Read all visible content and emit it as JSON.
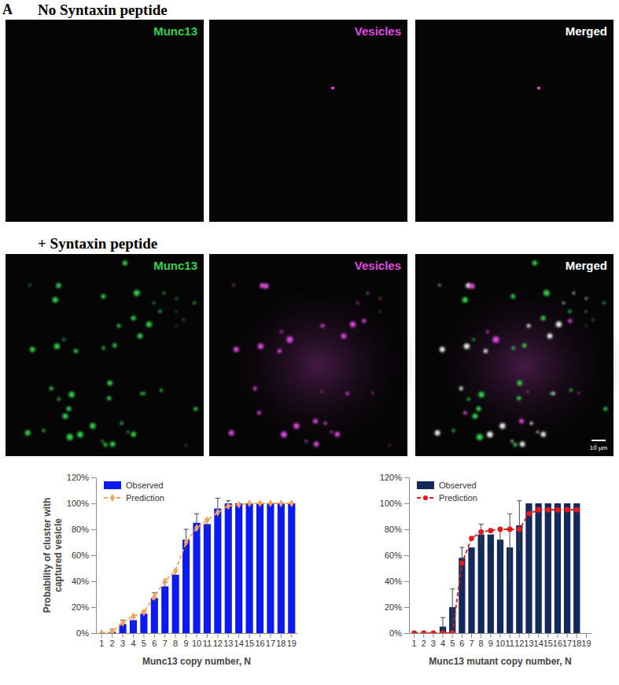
{
  "figure": {
    "letter": "A",
    "rows": [
      {
        "title": "No Syntaxin peptide",
        "channels": [
          "Munc13",
          "Vesicles",
          "Merged"
        ]
      },
      {
        "title": "+ Syntaxin peptide",
        "channels": [
          "Munc13",
          "Vesicles",
          "Merged"
        ]
      }
    ],
    "scale_bar": "10 μm"
  },
  "chart_data": [
    {
      "type": "bar",
      "x_label": "Munc13 copy number, N",
      "y_label": "Probability of cluster with captured vesicle",
      "categories": [
        1,
        2,
        3,
        4,
        5,
        6,
        7,
        8,
        9,
        10,
        11,
        12,
        13,
        14,
        15,
        16,
        17,
        18,
        19
      ],
      "series": [
        {
          "name": "Observed",
          "type": "bar",
          "color": "#0a1af0",
          "values": [
            0,
            1,
            7,
            10,
            15,
            27,
            36,
            45,
            72,
            85,
            84,
            96,
            100,
            100,
            100,
            100,
            100,
            100,
            100
          ],
          "errors": [
            0,
            2,
            3,
            2,
            2,
            4,
            3,
            3,
            8,
            7,
            4,
            8,
            2,
            0,
            0,
            0,
            0,
            0,
            0
          ]
        },
        {
          "name": "Prediction",
          "type": "line",
          "color": "#f5a35a",
          "marker": "diamond",
          "line_style": "dashed",
          "values": [
            0,
            1,
            8,
            13,
            16,
            28,
            40,
            48,
            70,
            81,
            87,
            93,
            98,
            99,
            100,
            100,
            100,
            100,
            100
          ]
        }
      ],
      "ylim": [
        0,
        120
      ],
      "yticks": [
        {
          "value": 0,
          "label": "0%"
        },
        {
          "value": 20,
          "label": "20%"
        },
        {
          "value": 40,
          "label": "40%"
        },
        {
          "value": 60,
          "label": "60%"
        },
        {
          "value": 80,
          "label": "80%"
        },
        {
          "value": 100,
          "label": "100%"
        },
        {
          "value": 120,
          "label": "120%"
        }
      ],
      "grid": false,
      "legend": "top-left"
    },
    {
      "type": "bar",
      "x_label": "Munc13 mutant copy number, N",
      "categories": [
        1,
        2,
        3,
        4,
        5,
        6,
        7,
        8,
        9,
        10,
        11,
        12,
        13,
        14,
        15,
        16,
        17,
        18,
        19
      ],
      "series": [
        {
          "name": "Observed",
          "type": "bar",
          "color": "#13295b",
          "values": [
            0,
            0,
            0,
            5,
            20,
            58,
            66,
            76,
            76,
            72,
            66,
            83,
            100,
            100,
            100,
            100,
            100,
            100,
            null
          ],
          "errors": [
            0,
            0,
            0,
            7,
            14,
            8,
            0,
            8,
            0,
            8,
            26,
            19,
            0,
            0,
            0,
            0,
            0,
            0,
            null
          ]
        },
        {
          "name": "Prediction",
          "type": "line",
          "color": "#e31a1c",
          "marker": "circle",
          "line_style": "dashed",
          "values": [
            0,
            0,
            0,
            0,
            0,
            54,
            73,
            78,
            79,
            80,
            80,
            80,
            92,
            95,
            95,
            95,
            95,
            95,
            null
          ]
        }
      ],
      "ylim": [
        0,
        120
      ],
      "yticks": [
        {
          "value": 0,
          "label": "0%"
        },
        {
          "value": 20,
          "label": "20%"
        },
        {
          "value": 40,
          "label": "40%"
        },
        {
          "value": 60,
          "label": "60%"
        },
        {
          "value": 80,
          "label": "80%"
        },
        {
          "value": 100,
          "label": "100%"
        },
        {
          "value": 120,
          "label": "120%"
        }
      ],
      "grid": false,
      "legend": "top-left"
    }
  ]
}
